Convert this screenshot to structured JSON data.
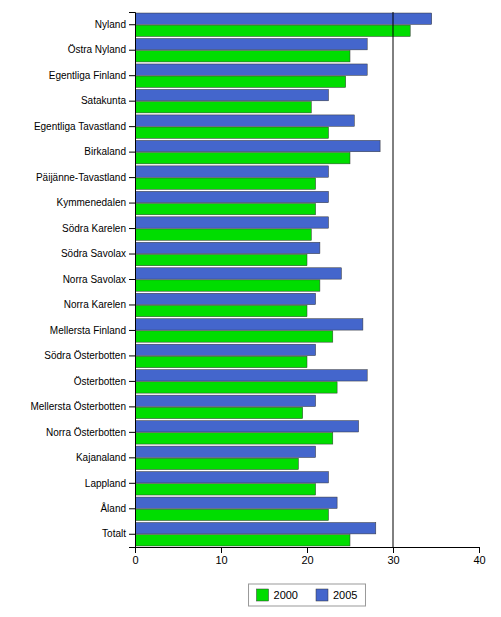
{
  "chart_data": {
    "type": "bar",
    "orientation": "horizontal",
    "categories": [
      "Nyland",
      "Östra Nyland",
      "Egentliga Finland",
      "Satakunta",
      "Egentliga Tavastland",
      "Birkaland",
      "Päijänne-Tavastland",
      "Kymmenedalen",
      "Södra Karelen",
      "Södra Savolax",
      "Norra Savolax",
      "Norra Karelen",
      "Mellersta Finland",
      "Södra Österbotten",
      "Österbotten",
      "Mellersta Österbotten",
      "Norra Österbotten",
      "Kajanaland",
      "Lappland",
      "Åland",
      "Totalt"
    ],
    "series": [
      {
        "name": "2000",
        "color": "#00dd00",
        "values": [
          32.0,
          25.0,
          24.5,
          20.5,
          22.5,
          25.0,
          21.0,
          21.0,
          20.5,
          20.0,
          21.5,
          20.0,
          23.0,
          20.0,
          23.5,
          19.5,
          23.0,
          19.0,
          21.0,
          22.5,
          25.0
        ]
      },
      {
        "name": "2005",
        "color": "#4466cc",
        "values": [
          34.5,
          27.0,
          27.0,
          22.5,
          25.5,
          28.5,
          22.5,
          22.5,
          22.5,
          21.5,
          24.0,
          21.0,
          26.5,
          21.0,
          27.0,
          21.0,
          26.0,
          21.0,
          22.5,
          23.5,
          28.0
        ]
      }
    ],
    "xlim": [
      0,
      40
    ],
    "xticks": [
      0,
      10,
      20,
      30,
      40
    ],
    "reference_line_x": 30,
    "legend": "bottom",
    "grid": false
  }
}
